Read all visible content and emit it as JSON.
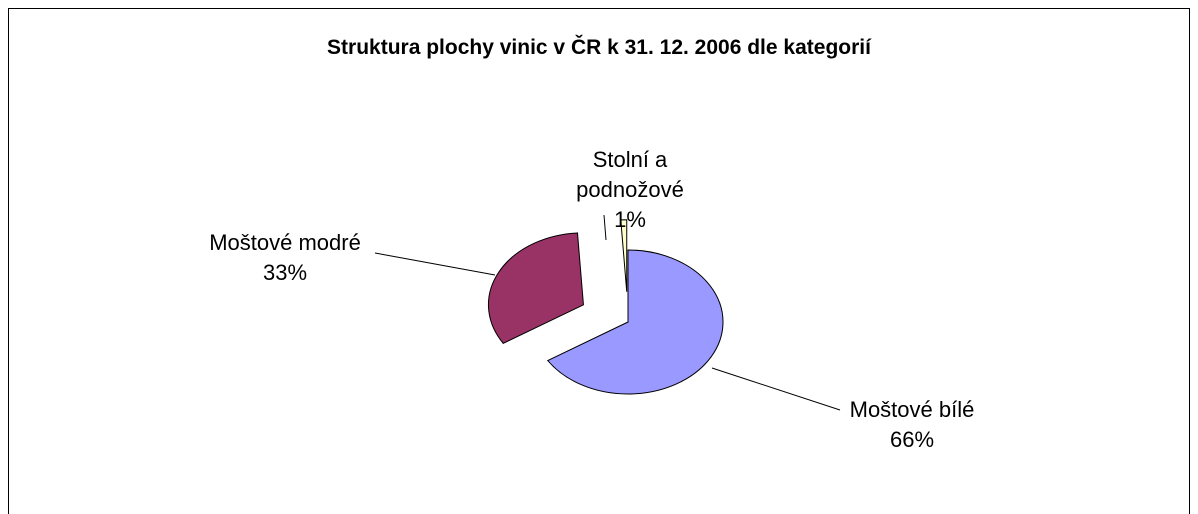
{
  "chart_data": {
    "type": "pie",
    "title": "Struktura plochy vinic v ČR k 31. 12. 2006 dle kategorií",
    "categories": [
      "Moštové bílé",
      "Moštové modré",
      "Stolní a podnožové"
    ],
    "values": [
      66,
      33,
      1
    ],
    "value_labels": [
      "66%",
      "33%",
      "1%"
    ],
    "colors": [
      "#9999ff",
      "#993366",
      "#ffffcc"
    ]
  }
}
